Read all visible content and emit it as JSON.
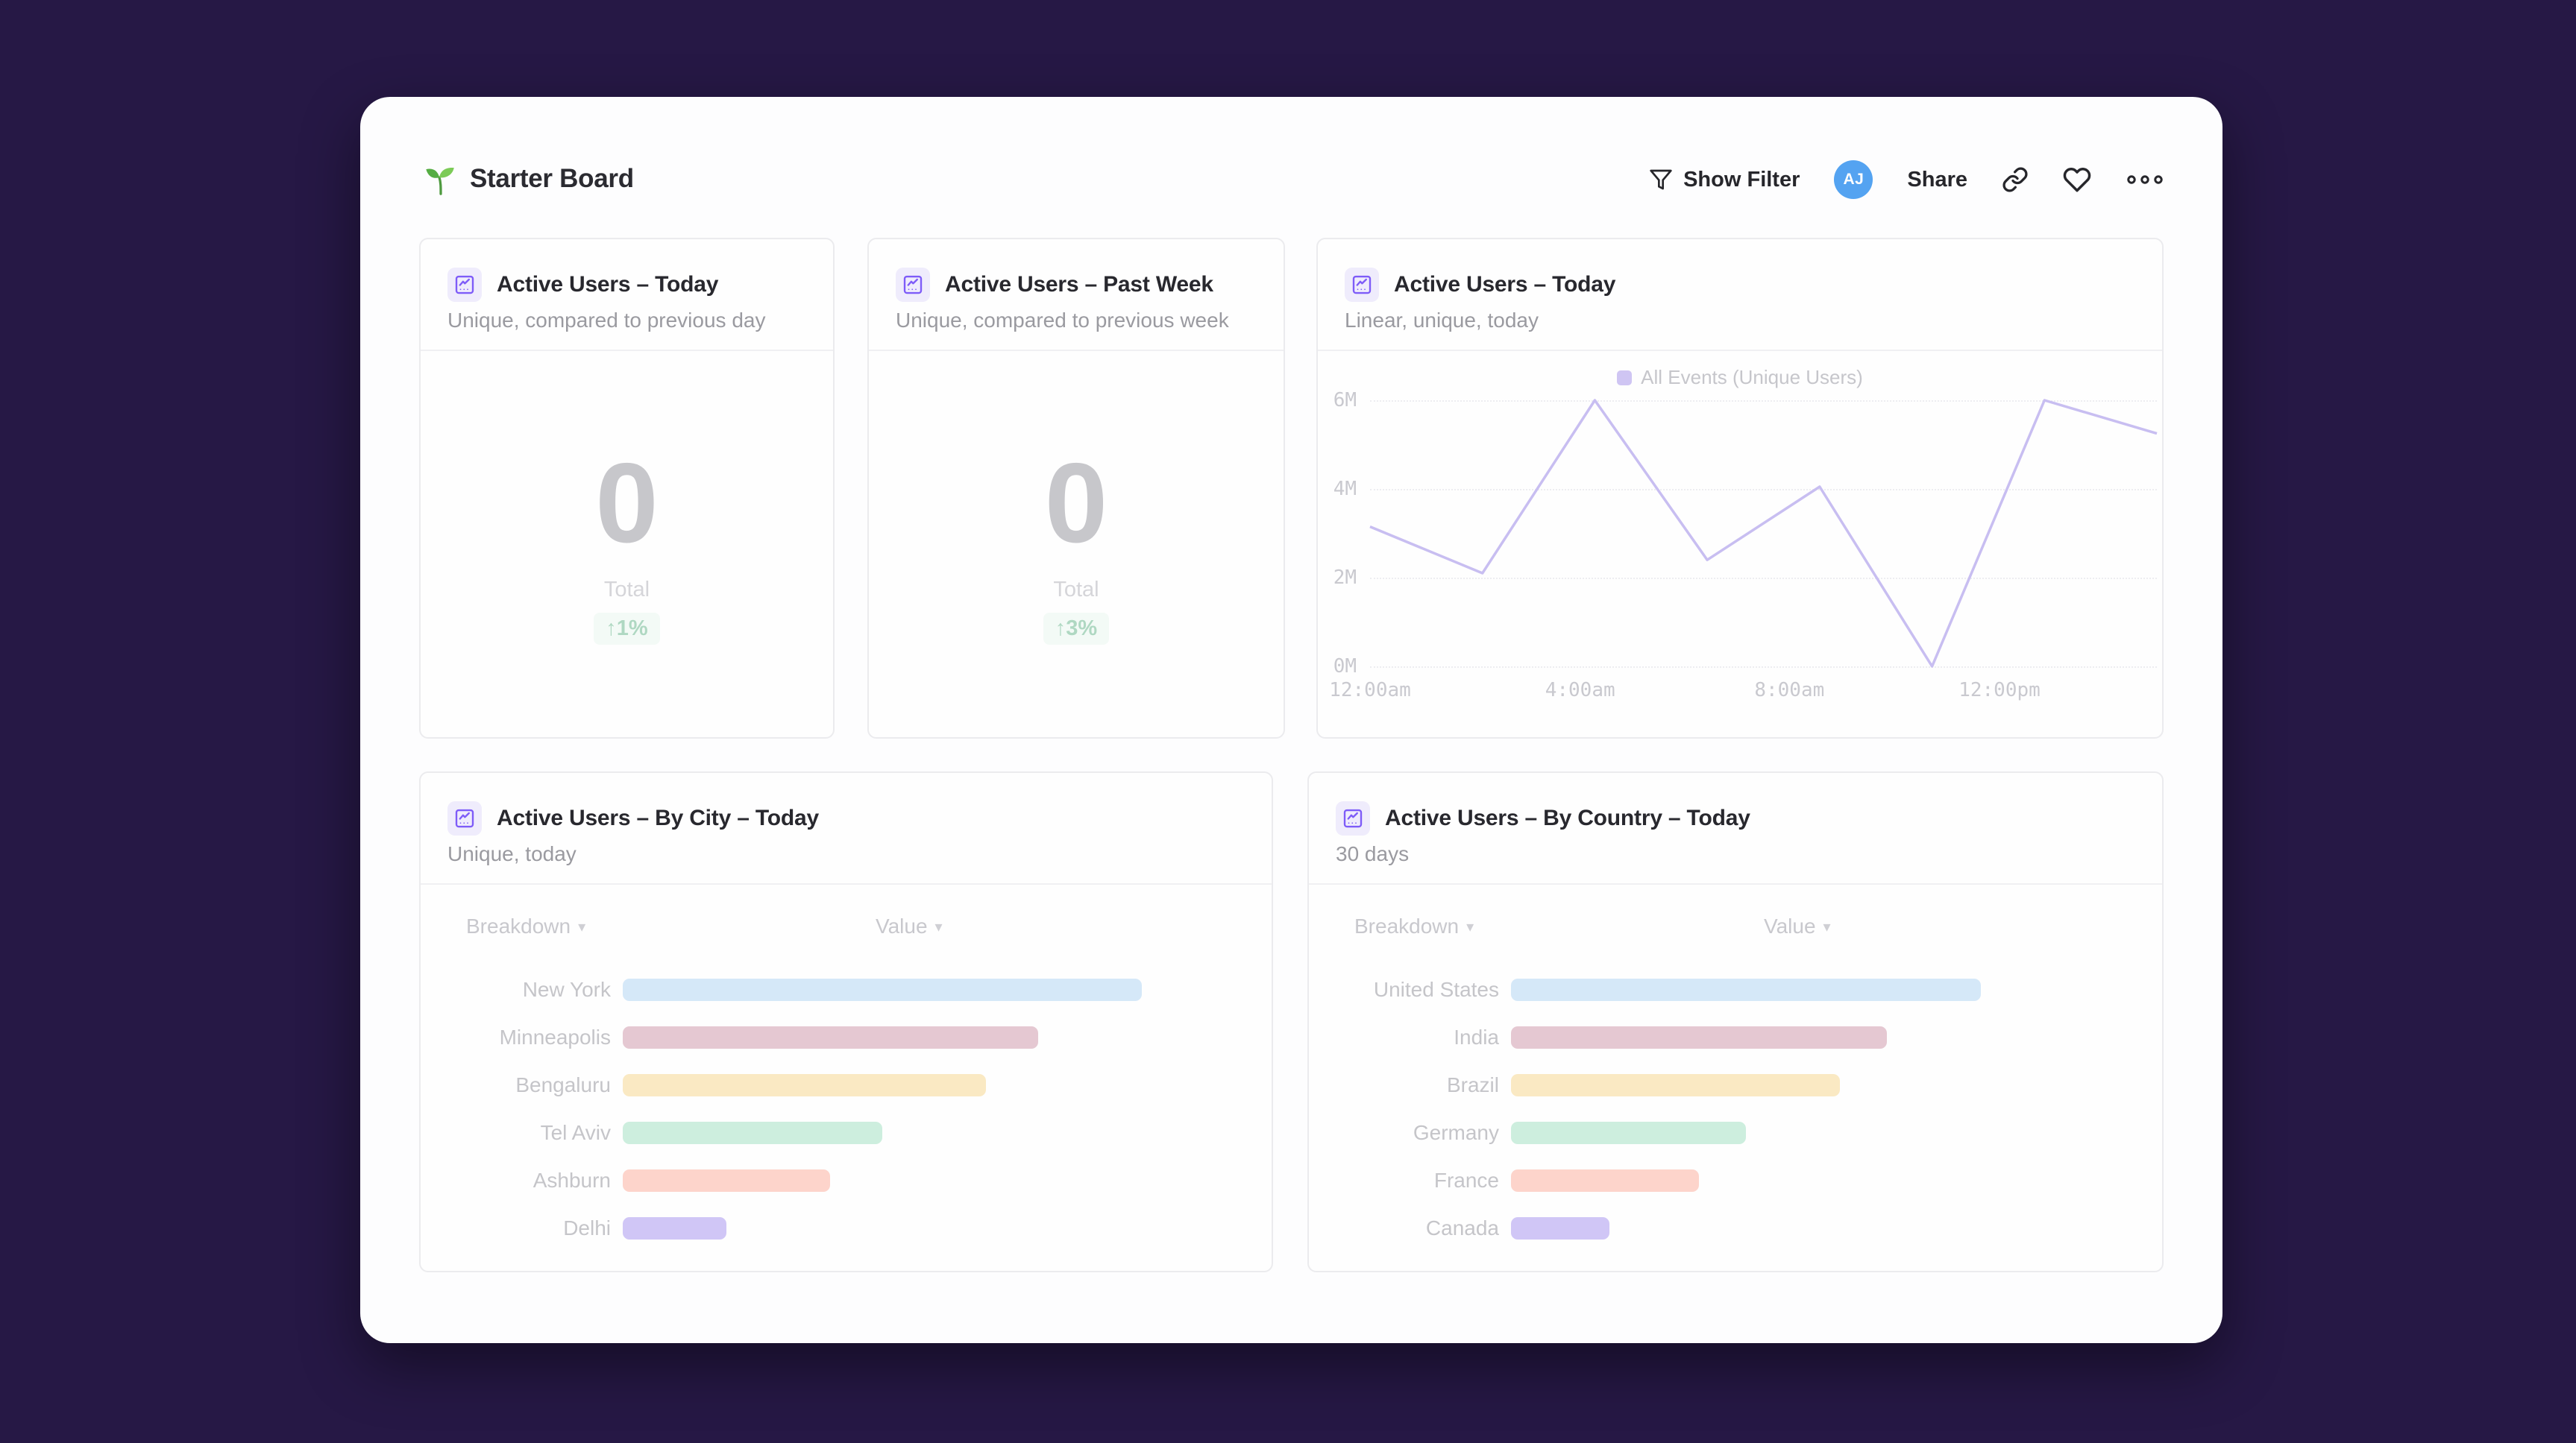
{
  "theme": {
    "page_bg": "#261845",
    "panel_bg": "#fdfdfe",
    "accent_purple": "#7e5cf8",
    "line_color": "#c8bef1",
    "bar_colors": [
      "#d5e8f8",
      "#e5c8d2",
      "#fae9c3",
      "#cdeede",
      "#fdd4cb",
      "#d0c6f6"
    ],
    "delta_color": "#afd8c2",
    "delta_bg": "#f3faf6",
    "avatar_bg": "#54a3f1"
  },
  "header": {
    "title": "Starter Board",
    "show_filter_label": "Show Filter",
    "avatar_initials": "AJ",
    "share_label": "Share"
  },
  "cards": {
    "kpi_today": {
      "title": "Active Users – Today",
      "subtitle": "Unique, compared to previous day",
      "value": "0",
      "value_label": "Total",
      "delta": "↑1%"
    },
    "kpi_week": {
      "title": "Active Users – Past Week",
      "subtitle": "Unique, compared to previous week",
      "value": "0",
      "value_label": "Total",
      "delta": "↑3%"
    },
    "line": {
      "title": "Active Users – Today",
      "subtitle": "Linear, unique, today",
      "legend": "All Events (Unique Users)"
    },
    "city": {
      "title": "Active Users – By City – Today",
      "subtitle": "Unique, today",
      "col_breakdown": "Breakdown",
      "col_value": "Value"
    },
    "country": {
      "title": "Active Users – By Country – Today",
      "subtitle": "30 days",
      "col_breakdown": "Breakdown",
      "col_value": "Value"
    }
  },
  "chart_data": [
    {
      "id": "active-users-line",
      "type": "line",
      "title": "Active Users – Today",
      "legend": [
        "All Events (Unique Users)"
      ],
      "y_ticks": [
        "6M",
        "4M",
        "2M",
        "0M"
      ],
      "ylim_millions": [
        0,
        6
      ],
      "x_ticks": [
        "12:00am",
        "4:00am",
        "8:00am",
        "12:00pm"
      ],
      "x_tick_positions_pct": [
        0,
        26.7,
        53.3,
        80
      ],
      "values_millions": [
        3.15,
        2.1,
        6,
        2.4,
        4.05,
        0,
        6,
        5.25
      ],
      "grid": "horizontal-dotted"
    },
    {
      "id": "active-users-by-city",
      "type": "bar",
      "orientation": "horizontal",
      "categories": [
        "New York",
        "Minneapolis",
        "Bengaluru",
        "Tel Aviv",
        "Ashburn",
        "Delhi"
      ],
      "values_relative_pct": [
        100,
        80,
        70,
        50,
        40,
        20
      ]
    },
    {
      "id": "active-users-by-country",
      "type": "bar",
      "orientation": "horizontal",
      "categories": [
        "United States",
        "India",
        "Brazil",
        "Germany",
        "France",
        "Canada"
      ],
      "values_relative_pct": [
        100,
        80,
        70,
        50,
        40,
        21
      ]
    }
  ]
}
